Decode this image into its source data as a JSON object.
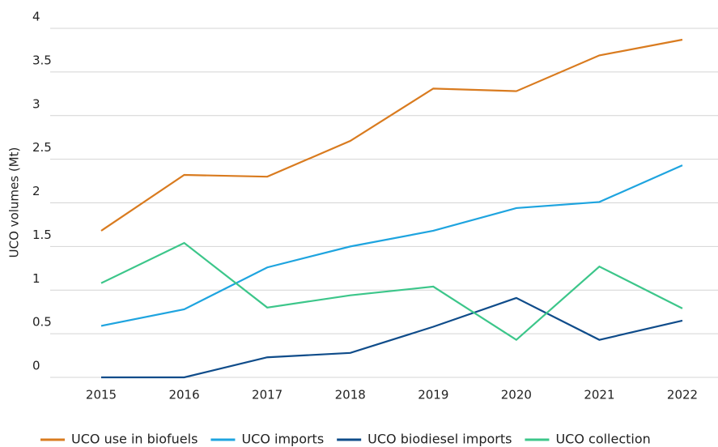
{
  "chart_data": {
    "type": "line",
    "y_label": "UCO volumes (Mt)",
    "categories": [
      "2015",
      "2016",
      "2017",
      "2018",
      "2019",
      "2020",
      "2021",
      "2022"
    ],
    "series": [
      {
        "name": "UCO use in biofuels",
        "color": "#d97b1f",
        "values": [
          1.68,
          2.32,
          2.3,
          2.71,
          3.31,
          3.28,
          3.69,
          3.87
        ]
      },
      {
        "name": "UCO imports",
        "color": "#1ea4df",
        "values": [
          0.59,
          0.78,
          1.26,
          1.5,
          1.68,
          1.94,
          2.01,
          2.43
        ]
      },
      {
        "name": "UCO biodiesel imports",
        "color": "#0f4c8a",
        "values": [
          0,
          0,
          0.23,
          0.28,
          0.58,
          0.91,
          0.43,
          0.65
        ]
      },
      {
        "name": "UCO collection",
        "color": "#3cc68a",
        "values": [
          1.08,
          1.54,
          0.8,
          0.94,
          1.04,
          0.43,
          1.27,
          0.79
        ]
      }
    ],
    "ylim": [
      0,
      4
    ],
    "yticks": [
      0,
      0.5,
      1,
      1.5,
      2,
      2.5,
      3,
      3.5,
      4
    ],
    "grid": true,
    "legend": "bottom"
  }
}
